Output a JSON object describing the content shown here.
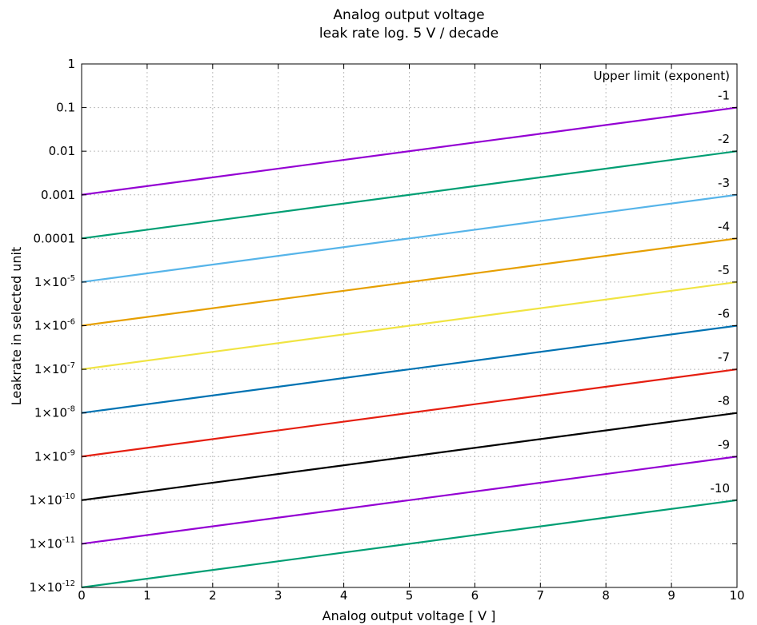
{
  "chart_data": {
    "type": "line",
    "title": "Analog output voltage",
    "subtitle": "leak rate log. 5 V / decade",
    "xlabel": "Analog output voltage [ V ]",
    "ylabel": "Leakrate in selected unit",
    "xlim": [
      0,
      10
    ],
    "ylim": [
      1e-12,
      1
    ],
    "yscale": "log",
    "grid": true,
    "legend_title": "Upper limit (exponent)",
    "x_ticks": [
      "0",
      "1",
      "2",
      "3",
      "4",
      "5",
      "6",
      "7",
      "8",
      "9",
      "10"
    ],
    "y_ticks": [
      {
        "value": 1,
        "base": "1",
        "exp": ""
      },
      {
        "value": 0.1,
        "base": "0.1",
        "exp": ""
      },
      {
        "value": 0.01,
        "base": "0.01",
        "exp": ""
      },
      {
        "value": 0.001,
        "base": "0.001",
        "exp": ""
      },
      {
        "value": 0.0001,
        "base": "0.0001",
        "exp": ""
      },
      {
        "value": 1e-05,
        "base": "1×10",
        "exp": "-5"
      },
      {
        "value": 1e-06,
        "base": "1×10",
        "exp": "-6"
      },
      {
        "value": 1e-07,
        "base": "1×10",
        "exp": "-7"
      },
      {
        "value": 1e-08,
        "base": "1×10",
        "exp": "-8"
      },
      {
        "value": 1e-09,
        "base": "1×10",
        "exp": "-9"
      },
      {
        "value": 1e-10,
        "base": "1×10",
        "exp": "-10"
      },
      {
        "value": 1e-11,
        "base": "1×10",
        "exp": "-11"
      },
      {
        "value": 1e-12,
        "base": "1×10",
        "exp": "-12"
      }
    ],
    "series": [
      {
        "name": "-1",
        "color": "#9400d3",
        "x": [
          0,
          10
        ],
        "y": [
          0.001,
          0.1
        ]
      },
      {
        "name": "-2",
        "color": "#009e73",
        "x": [
          0,
          10
        ],
        "y": [
          0.0001,
          0.01
        ]
      },
      {
        "name": "-3",
        "color": "#56b4e9",
        "x": [
          0,
          10
        ],
        "y": [
          1e-05,
          0.001
        ]
      },
      {
        "name": "-4",
        "color": "#e69f00",
        "x": [
          0,
          10
        ],
        "y": [
          1e-06,
          0.0001
        ]
      },
      {
        "name": "-5",
        "color": "#f0e442",
        "x": [
          0,
          10
        ],
        "y": [
          1e-07,
          1e-05
        ]
      },
      {
        "name": "-6",
        "color": "#0072b2",
        "x": [
          0,
          10
        ],
        "y": [
          1e-08,
          1e-06
        ]
      },
      {
        "name": "-7",
        "color": "#e51e10",
        "x": [
          0,
          10
        ],
        "y": [
          1e-09,
          1e-07
        ]
      },
      {
        "name": "-8",
        "color": "#000000",
        "x": [
          0,
          10
        ],
        "y": [
          1e-10,
          1e-08
        ]
      },
      {
        "name": "-9",
        "color": "#9400d3",
        "x": [
          0,
          10
        ],
        "y": [
          1e-11,
          1e-09
        ]
      },
      {
        "name": "-10",
        "color": "#009e73",
        "x": [
          0,
          10
        ],
        "y": [
          1e-12,
          1e-10
        ]
      }
    ]
  }
}
